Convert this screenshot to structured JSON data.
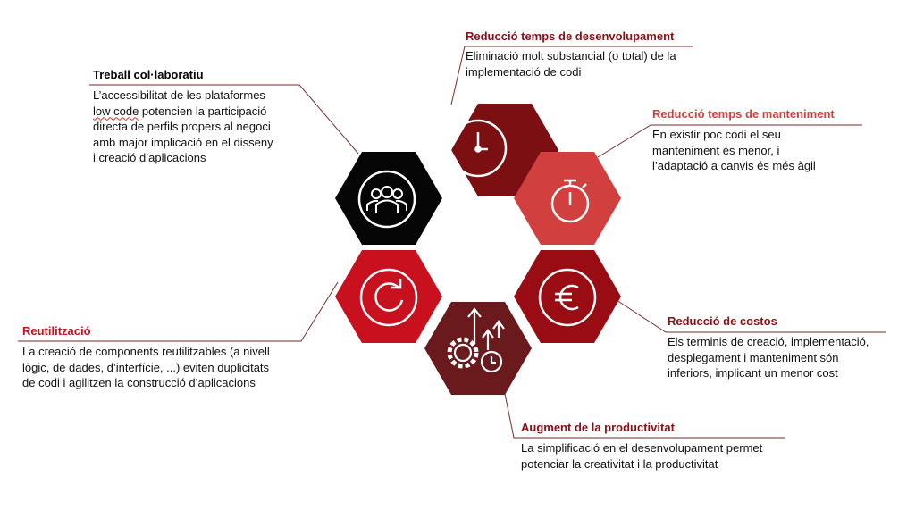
{
  "colors": {
    "dark_red": "#7b0f12",
    "coral_red": "#d23f3f",
    "deep_red": "#9a0c14",
    "black": "#050505",
    "bright_red": "#c8101e",
    "maroon": "#6a1a1d",
    "connector": "#7a2a2a",
    "title_red": "#8b1016",
    "title_black": "#000000"
  },
  "items": [
    {
      "id": "dev-time",
      "icon": "clock-icon",
      "color_key": "dark_red",
      "title": "Reducció temps de desenvolupament",
      "title_color_key": "title_red",
      "lines": [
        "Eliminació molt substancial (o total) de la",
        "implementació de codi"
      ]
    },
    {
      "id": "maintenance-time",
      "icon": "stopwatch-icon",
      "color_key": "coral_red",
      "title": "Reducció temps de manteniment",
      "title_color_key": "coral_red",
      "lines": [
        "En existir poc codi el seu",
        "manteniment és menor, i",
        "l’adaptació a canvis és més àgil"
      ]
    },
    {
      "id": "costs",
      "icon": "euro-icon",
      "color_key": "deep_red",
      "title": "Reducció de costos",
      "title_color_key": "title_red",
      "lines": [
        "Els terminis de creació, implementació,",
        "desplegament i manteniment són",
        "inferiors, implicant un menor cost"
      ]
    },
    {
      "id": "productivity",
      "icon": "gears-growth-icon",
      "color_key": "maroon",
      "title": "Augment de la productivitat",
      "title_color_key": "title_red",
      "lines": [
        "La simplificació en el desenvolupament permet",
        "potenciar la creativitat i la productivitat"
      ]
    },
    {
      "id": "reuse",
      "icon": "refresh-icon",
      "color_key": "bright_red",
      "title": "Reutilització",
      "title_color_key": "bright_red",
      "lines": [
        "La creació de components reutilitzables (a nivell",
        "lògic, de dades, d’interfície, ...) eviten duplicitats",
        "de codi i agilitzen la construcció d’aplicacions"
      ]
    },
    {
      "id": "collab",
      "icon": "users-icon",
      "color_key": "black",
      "title": "Treball col·laboratiu",
      "title_color_key": "title_black",
      "lines": [
        "L’accessibilitat de les plataformes",
        "low code potencien la participació",
        "directa de perfils propers al negoci",
        "amb major implicació en el disseny",
        "i creació d’aplicacions"
      ]
    }
  ]
}
